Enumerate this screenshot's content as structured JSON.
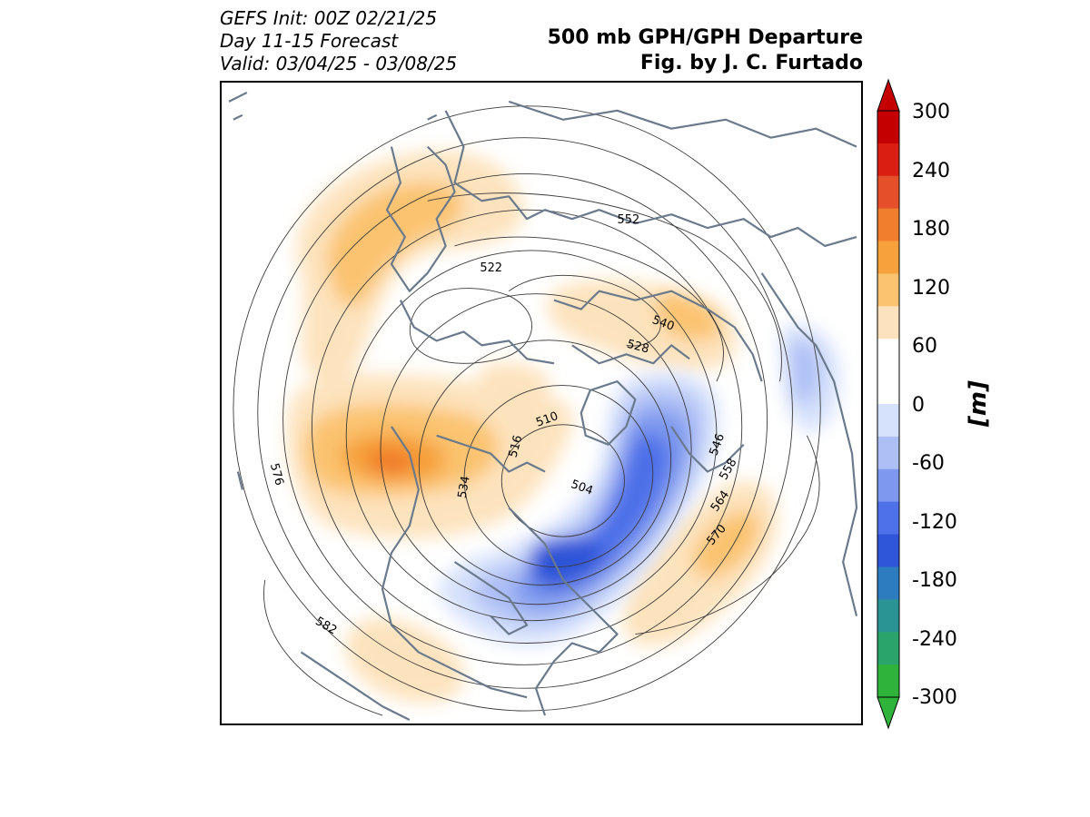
{
  "header": {
    "init_line": "GEFS Init: 00Z 02/21/25",
    "forecast_line": "Day 11-15 Forecast",
    "valid_line": "Valid: 03/04/25 - 03/08/25",
    "title": "500 mb GPH/GPH Departure",
    "credit": "Fig. by J. C. Furtado"
  },
  "colorbar": {
    "unit_label": "[m]",
    "ticks": [
      "300",
      "240",
      "180",
      "120",
      "60",
      "0",
      "-60",
      "-120",
      "-180",
      "-240",
      "-300"
    ],
    "colors_top_to_bottom": [
      "#c40000",
      "#d81f12",
      "#e5502a",
      "#f07e2c",
      "#f6a13b",
      "#fbc36f",
      "#fde3bd",
      "#ffffff",
      "#ffffff",
      "#d6e1fb",
      "#aebff5",
      "#7d98ee",
      "#4e70e8",
      "#2f55d8",
      "#2d7cc0",
      "#2a9393",
      "#2aa46a",
      "#2fb33a"
    ]
  },
  "map": {
    "contour_labels": [
      "552",
      "522",
      "540",
      "528",
      "510",
      "516",
      "546",
      "504",
      "558",
      "534",
      "564",
      "570",
      "576",
      "582"
    ],
    "colors": {
      "coastline": "#6a7a8c",
      "contour": "#3a3a3a"
    }
  }
}
